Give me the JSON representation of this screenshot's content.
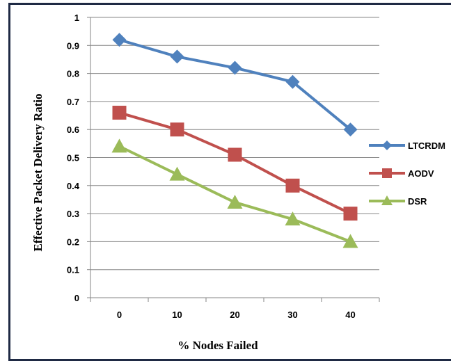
{
  "chart_data": {
    "type": "line",
    "title": "",
    "xlabel": "% Nodes Failed",
    "ylabel": "Effective Packet Delivery Ratio",
    "categories": [
      "0",
      "10",
      "20",
      "30",
      "40"
    ],
    "ylim": [
      0,
      1
    ],
    "yticks": [
      "0",
      "0.1",
      "0.2",
      "0.3",
      "0.4",
      "0.5",
      "0.6",
      "0.7",
      "0.8",
      "0.9",
      "1"
    ],
    "grid": true,
    "legend_position": "right",
    "series": [
      {
        "name": "LTCRDM",
        "values": [
          0.92,
          0.86,
          0.82,
          0.77,
          0.6
        ],
        "color": "#4f81bd",
        "marker": "diamond"
      },
      {
        "name": "AODV",
        "values": [
          0.66,
          0.6,
          0.51,
          0.4,
          0.3
        ],
        "color": "#c0504d",
        "marker": "square"
      },
      {
        "name": "DSR",
        "values": [
          0.54,
          0.44,
          0.34,
          0.28,
          0.2
        ],
        "color": "#9bbb59",
        "marker": "triangle"
      }
    ]
  }
}
